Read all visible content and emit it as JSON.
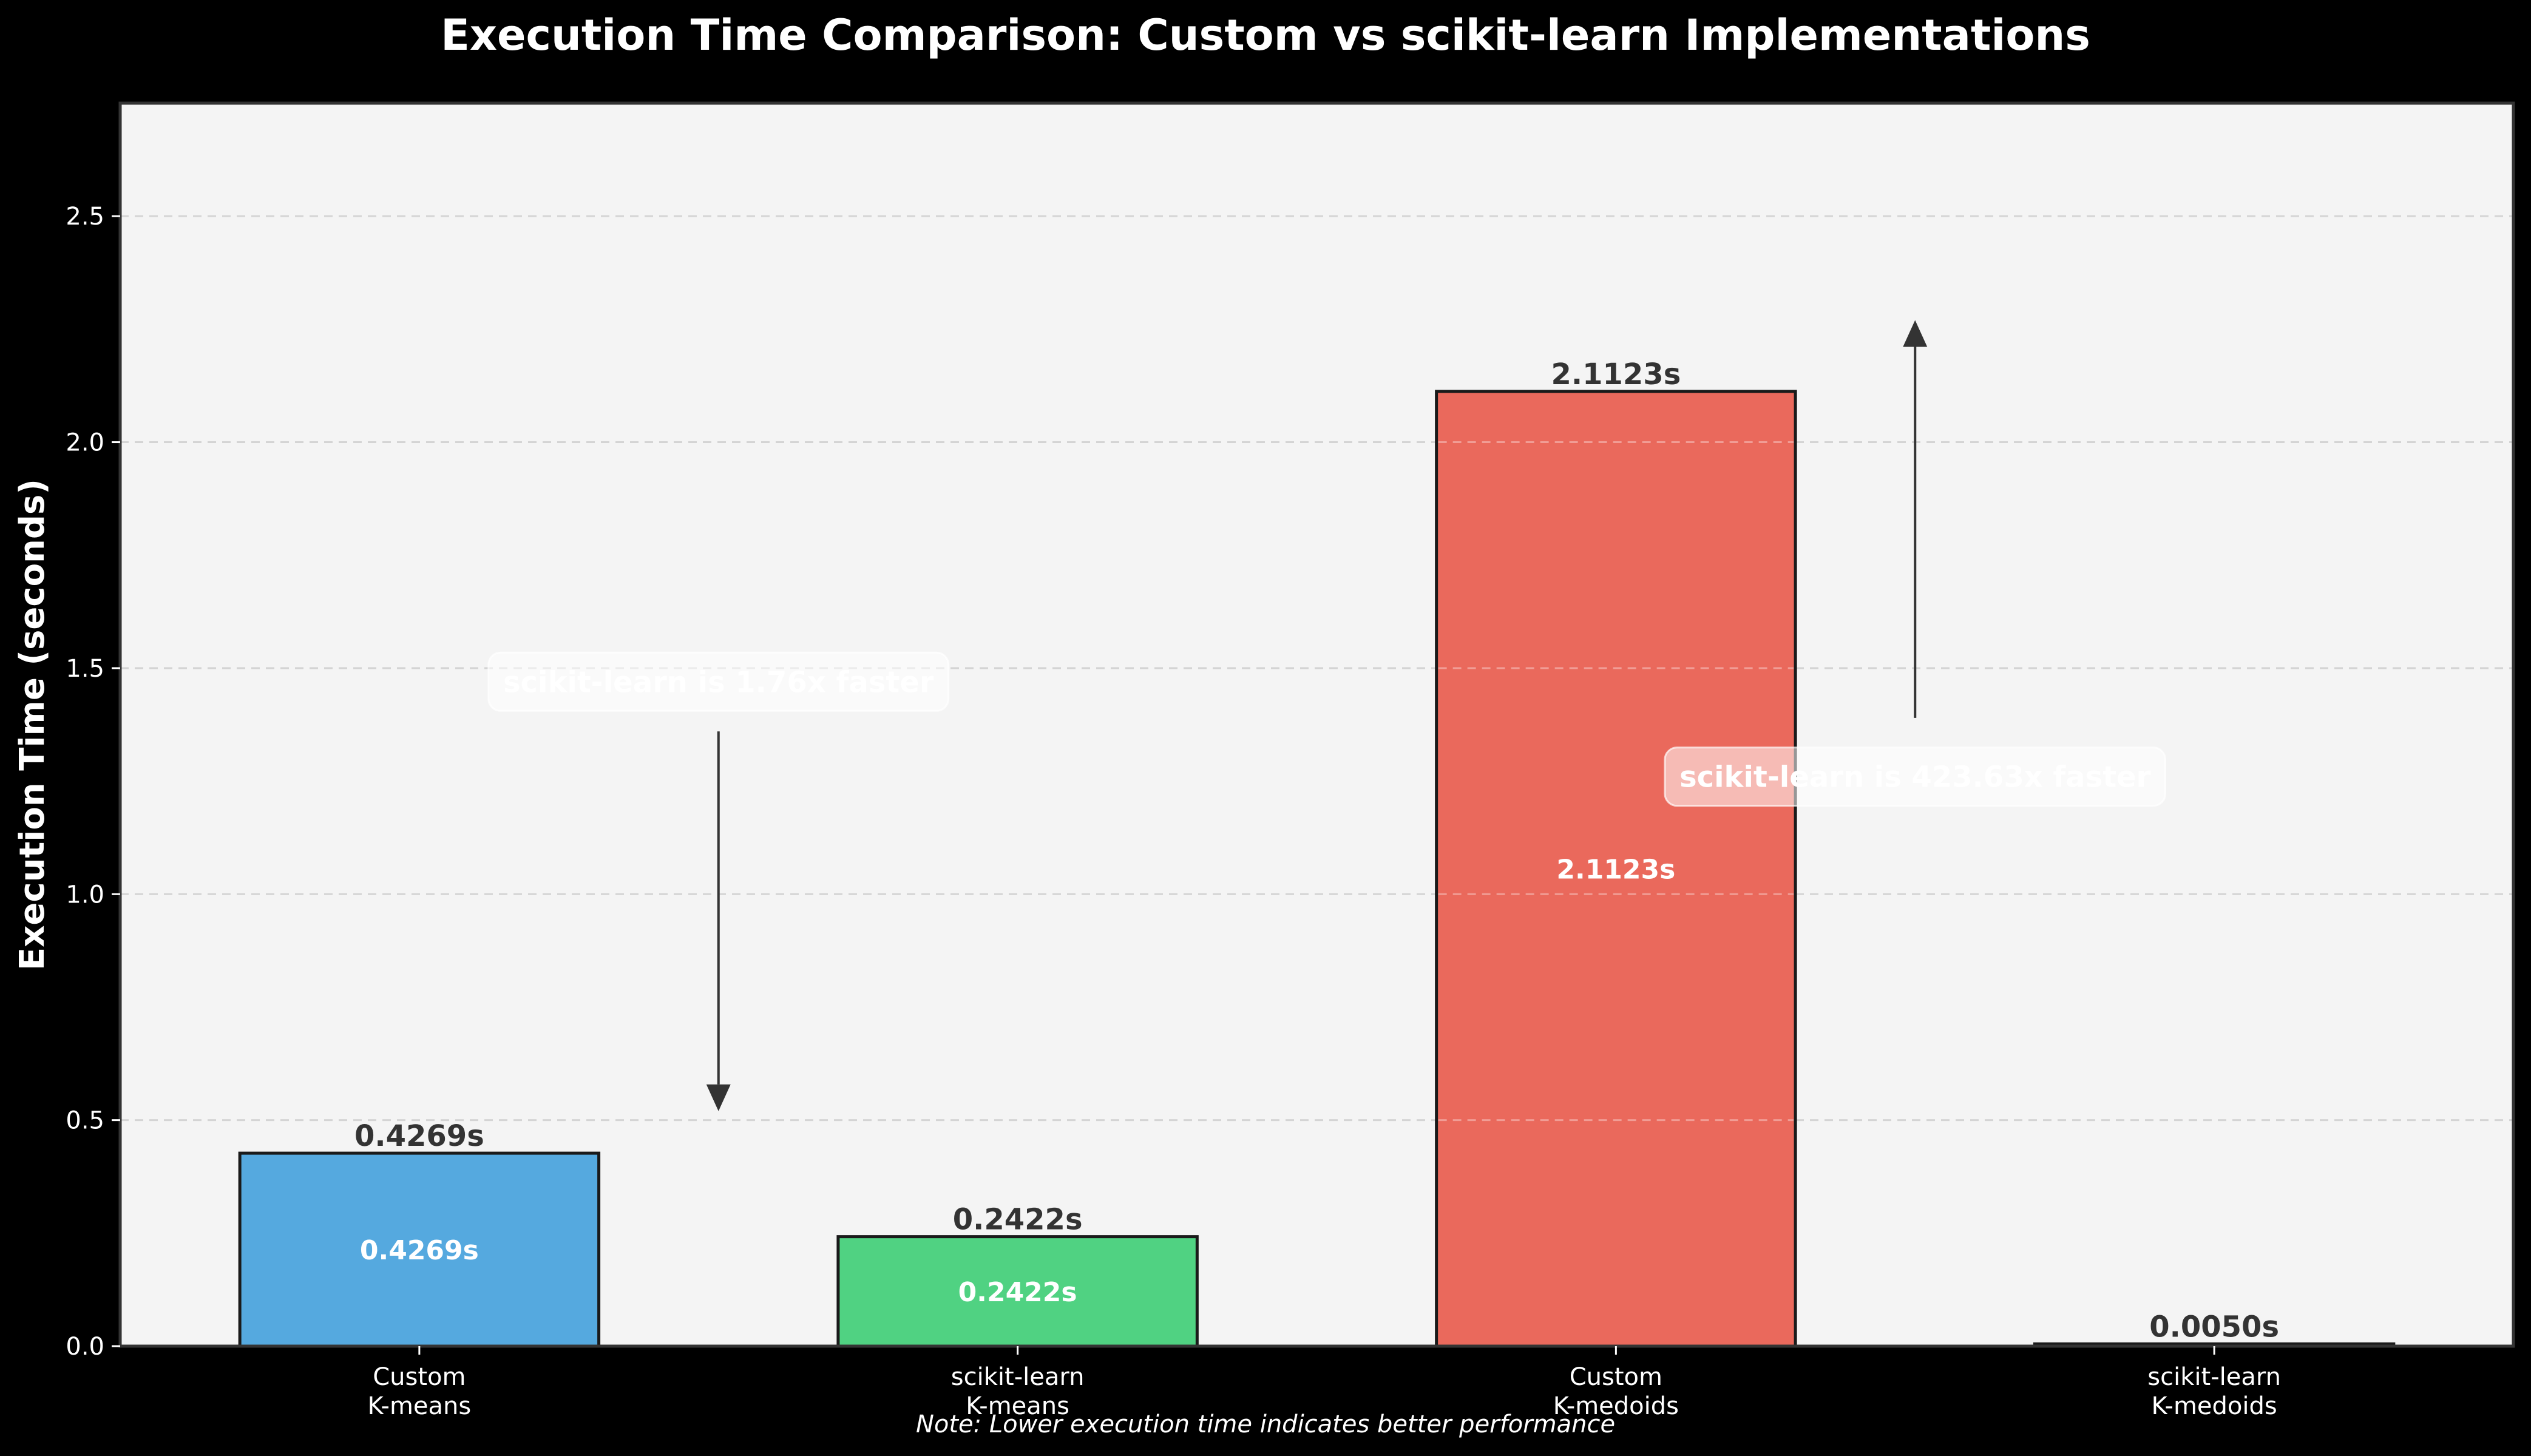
{
  "chart_data": {
    "type": "bar",
    "title": "Execution Time Comparison: Custom vs scikit-learn Implementations",
    "xlabel": "",
    "ylabel": "Execution Time (seconds)",
    "ylim": [
      0,
      2.75
    ],
    "yticks": [
      0.0,
      0.5,
      1.0,
      1.5,
      2.0,
      2.5
    ],
    "ytick_labels": [
      "0.0",
      "0.5",
      "1.0",
      "1.5",
      "2.0",
      "2.5"
    ],
    "grid": "y, dashed",
    "categories": [
      [
        "Custom",
        "K-means"
      ],
      [
        "scikit-learn",
        "K-means"
      ],
      [
        "Custom",
        "K-medoids"
      ],
      [
        "scikit-learn",
        "K-medoids"
      ]
    ],
    "values": [
      0.4269,
      0.2422,
      2.1123,
      0.005
    ],
    "value_labels": [
      "0.4269s",
      "0.2422s",
      "2.1123s",
      "0.0050s"
    ],
    "inner_labels": [
      "0.4269s",
      "0.2422s",
      "2.1123s",
      ""
    ],
    "colors": [
      "#52a7de",
      "#4cd180",
      "#ea6659",
      "#333333"
    ],
    "annotations": [
      {
        "text": "scikit-learn is 1.76x faster",
        "label_y": 1.47,
        "arrow_from_y": 1.36,
        "arrow_to_y": 0.52,
        "between": [
          0,
          1
        ]
      },
      {
        "text": "scikit-learn is 423.63x faster",
        "label_y": 1.26,
        "arrow_from_y": 1.39,
        "arrow_to_y": 2.27,
        "between": [
          2,
          3
        ]
      }
    ],
    "note": "Note: Lower execution time indicates better performance",
    "colors_theme": {
      "figure_bg": "#000000",
      "axes_bg": "#f4f4f4",
      "text": "#ffffff",
      "bar_label": "#333333",
      "arrow": "#333333"
    }
  }
}
